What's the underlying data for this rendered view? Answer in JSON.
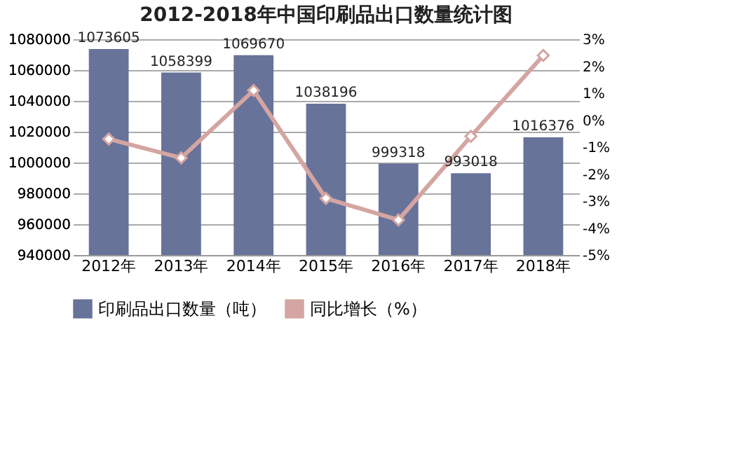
{
  "chart_data": {
    "type": "bar",
    "title": "2012-2018年中国印刷品出口数量统计图",
    "categories": [
      "2012年",
      "2013年",
      "2014年",
      "2015年",
      "2016年",
      "2017年",
      "2018年"
    ],
    "series": [
      {
        "name": "印刷品出口数量（吨）",
        "color": "#68739a",
        "values": [
          1073605,
          1058399,
          1069670,
          1038196,
          999318,
          993018,
          1016376
        ],
        "value_labels": [
          "1073605",
          "1058399",
          "1069670",
          "1038196",
          "999318",
          "993018",
          "1016376"
        ]
      },
      {
        "name": "同比增长（%）",
        "color": "#d4a5a2",
        "type": "line",
        "axis": "y2",
        "marker": "diamond",
        "values": [
          -0.7,
          -1.4,
          1.1,
          -2.9,
          -3.7,
          -0.6,
          2.4
        ]
      }
    ],
    "ylim": [
      940000,
      1080000
    ],
    "yticks": [
      940000,
      960000,
      980000,
      1000000,
      1020000,
      1040000,
      1060000,
      1080000
    ],
    "y2lim": [
      -5,
      3
    ],
    "y2ticks": [
      {
        "value": -5,
        "label": "-5%"
      },
      {
        "value": -4,
        "label": "-4%"
      },
      {
        "value": -3,
        "label": "-3%"
      },
      {
        "value": -2,
        "label": "-2%"
      },
      {
        "value": -1,
        "label": "-1%"
      },
      {
        "value": 0,
        "label": "0%"
      },
      {
        "value": 1,
        "label": "1%"
      },
      {
        "value": 2,
        "label": "2%"
      },
      {
        "value": 3,
        "label": "3%"
      }
    ],
    "grid": "y",
    "legend": "bottom"
  }
}
